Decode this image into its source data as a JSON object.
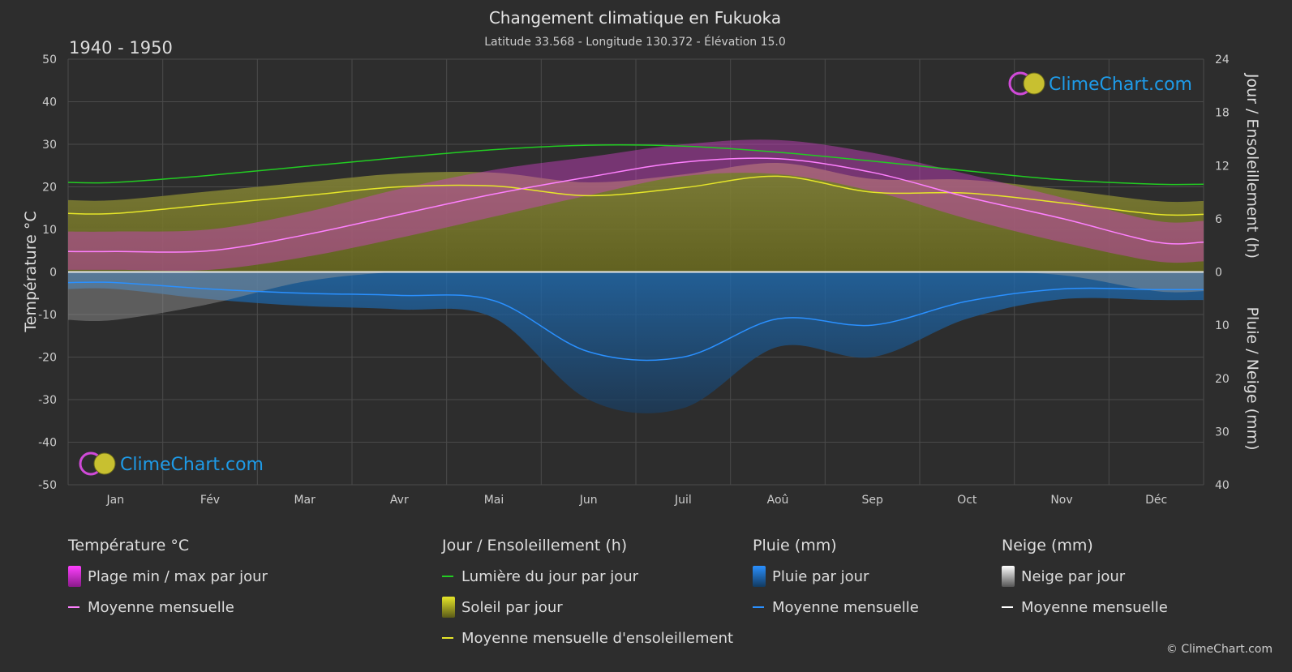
{
  "header": {
    "title": "Changement climatique en Fukuoka",
    "subtitle": "Latitude 33.568 - Longitude 130.372 - Élévation 15.0",
    "period": "1940 - 1950"
  },
  "brand": {
    "name": "ClimeChart.com",
    "copyright": "© ClimeChart.com"
  },
  "colors": {
    "background": "#2d2d2d",
    "temp_range": "#e040e0",
    "temp_mean": "#ff80ff",
    "daylight": "#22cc22",
    "sunshine": "#b5b52a",
    "sunshine_mean": "#e6e629",
    "rain": "#1e78c8",
    "rain_mean": "#2a90ff",
    "snow": "#bbbbbb",
    "snow_mean": "#ffffff",
    "brand_text": "#1e9be8"
  },
  "chart_data": {
    "type": "line",
    "categories": [
      "Jan",
      "Fév",
      "Mar",
      "Avr",
      "Mai",
      "Jun",
      "Juil",
      "Aoû",
      "Sep",
      "Oct",
      "Nov",
      "Déc"
    ],
    "left_axis": {
      "label": "Température °C",
      "range": [
        -50,
        50
      ],
      "ticks": [
        50,
        40,
        30,
        20,
        10,
        0,
        -10,
        -20,
        -30,
        -40,
        -50
      ]
    },
    "right_axis_top": {
      "label": "Jour / Ensoleillement (h)",
      "range": [
        0,
        24
      ],
      "ticks": [
        24,
        18,
        12,
        6,
        0
      ]
    },
    "right_axis_bottom": {
      "label": "Pluie / Neige (mm)",
      "range": [
        0,
        40
      ],
      "ticks": [
        0,
        10,
        20,
        30,
        40
      ]
    },
    "series": [
      {
        "name": "Moyenne mensuelle",
        "group": "Température °C",
        "axis": "temp",
        "values": [
          4.8,
          5.0,
          8.7,
          13.5,
          18.3,
          22.3,
          25.8,
          26.6,
          23.4,
          17.6,
          12.6,
          7.0
        ]
      },
      {
        "name": "Plage min / max par jour",
        "group": "Température °C",
        "axis": "temp",
        "min": [
          0.5,
          0.5,
          3.5,
          8.0,
          13.0,
          18.0,
          22.5,
          23.0,
          19.0,
          12.5,
          7.0,
          2.5
        ],
        "max": [
          9.5,
          10.0,
          14.0,
          19.5,
          24.0,
          27.0,
          30.0,
          31.0,
          28.0,
          23.0,
          17.5,
          12.0
        ]
      },
      {
        "name": "Lumière du jour par jour",
        "group": "Jour / Ensoleillement (h)",
        "axis": "hours",
        "values": [
          10.1,
          10.9,
          11.9,
          12.9,
          13.8,
          14.3,
          14.2,
          13.5,
          12.5,
          11.4,
          10.4,
          9.9
        ]
      },
      {
        "name": "Soleil par jour",
        "group": "Jour / Ensoleillement (h)",
        "axis": "hours",
        "values": [
          4.4,
          5.5,
          6.1,
          7.0,
          7.2,
          6.5,
          7.4,
          8.3,
          7.0,
          6.5,
          5.3,
          4.4
        ]
      },
      {
        "name": "Moyenne mensuelle d'ensoleillement",
        "group": "Jour / Ensoleillement (h)",
        "axis": "hours",
        "values": [
          6.6,
          7.6,
          8.6,
          9.6,
          9.7,
          8.6,
          9.5,
          10.8,
          9.0,
          8.9,
          7.8,
          6.5
        ]
      },
      {
        "name": "Pluie par jour",
        "group": "Pluie (mm)",
        "axis": "precip",
        "values": [
          2.0,
          3.2,
          4.0,
          4.4,
          5.4,
          15.0,
          16.0,
          8.8,
          10.0,
          5.5,
          3.2,
          3.3
        ]
      },
      {
        "name": "Moyenne mensuelle",
        "group": "Pluie (mm)",
        "axis": "precip",
        "values": [
          2.0,
          3.2,
          4.0,
          4.4,
          5.4,
          15.0,
          16.0,
          8.8,
          10.0,
          5.5,
          3.2,
          3.3
        ]
      },
      {
        "name": "Neige par jour",
        "group": "Neige (mm)",
        "axis": "precip",
        "values": [
          1.5,
          1.0,
          0.3,
          0,
          0,
          0,
          0,
          0,
          0,
          0,
          0.1,
          0.6
        ]
      },
      {
        "name": "Moyenne mensuelle",
        "group": "Neige (mm)",
        "axis": "precip",
        "values": [
          0,
          0,
          0,
          0,
          0,
          0,
          0,
          0,
          0,
          0,
          0,
          0
        ]
      }
    ],
    "grid": true
  },
  "legend": {
    "temperature": {
      "title": "Température °C",
      "items": [
        "Plage min / max par jour",
        "Moyenne mensuelle"
      ]
    },
    "sun": {
      "title": "Jour / Ensoleillement (h)",
      "items": [
        "Lumière du jour par jour",
        "Soleil par jour",
        "Moyenne mensuelle d'ensoleillement"
      ]
    },
    "rain": {
      "title": "Pluie (mm)",
      "items": [
        "Pluie par jour",
        "Moyenne mensuelle"
      ]
    },
    "snow": {
      "title": "Neige (mm)",
      "items": [
        "Neige par jour",
        "Moyenne mensuelle"
      ]
    }
  }
}
